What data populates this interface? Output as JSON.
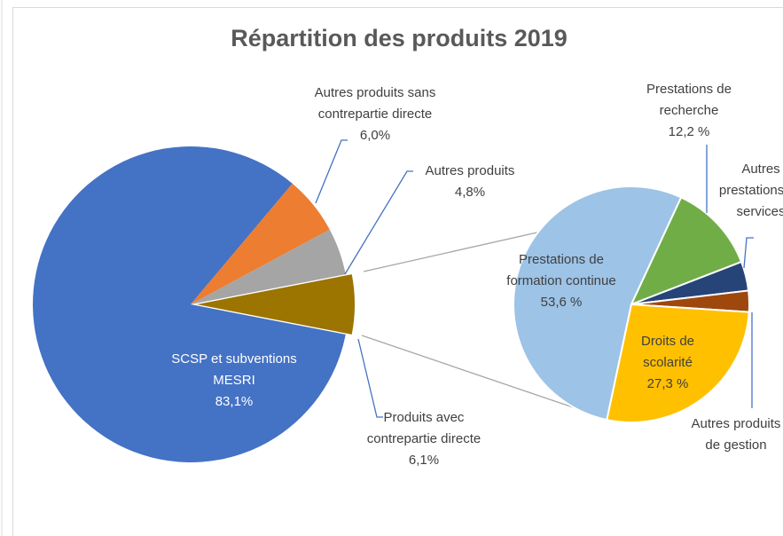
{
  "chart_data": [
    {
      "type": "pie",
      "title": "Répartition des produits 2019",
      "categories": [
        "SCSP et subventions MESRI",
        "Autres produits sans contrepartie directe",
        "Autres produits",
        "Produits avec contrepartie directe"
      ],
      "values": [
        83.1,
        6.0,
        4.8,
        6.1
      ],
      "value_labels": [
        "83,1%",
        "6,0%",
        "4,8%",
        "6,1%"
      ],
      "colors": [
        "#4472c4",
        "#ed7d31",
        "#a5a5a5",
        "#9c7400"
      ]
    },
    {
      "type": "pie",
      "categories": [
        "Prestations de formation continue",
        "Prestations de recherche",
        "Autres prestations de services",
        "Autres produits de gestion",
        "Droits de scolarité"
      ],
      "values": [
        53.6,
        12.2,
        4.0,
        2.9,
        27.3
      ],
      "value_labels": [
        "53,6 %",
        "12,2 %",
        null,
        null,
        "27,3 %"
      ],
      "colors": [
        "#9dc3e6",
        "#70ad47",
        "#264478",
        "#9e480e",
        "#ffc000"
      ]
    }
  ]
}
